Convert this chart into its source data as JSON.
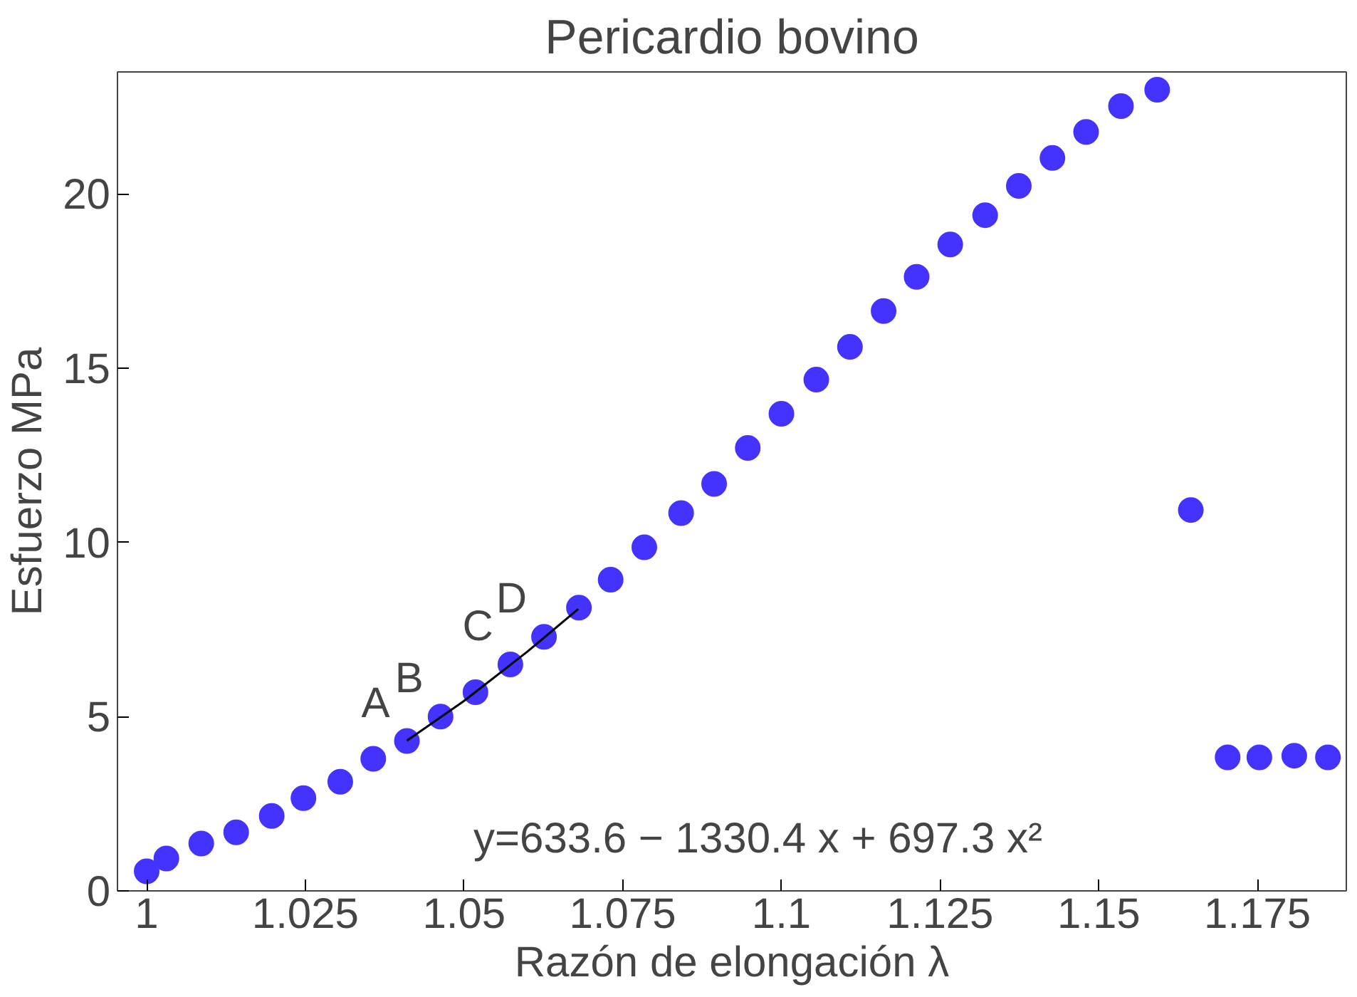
{
  "chart_data": {
    "type": "scatter",
    "title": "Pericardio bovino",
    "xlabel": "Razón de elongación λ",
    "ylabel": "Esfuerzo MPa",
    "xlim": [
      0.9954,
      1.189
    ],
    "ylim": [
      0,
      23.5
    ],
    "xticks": [
      1,
      1.025,
      1.05,
      1.075,
      1.1,
      1.125,
      1.15,
      1.175
    ],
    "yticks": [
      0,
      5,
      10,
      15,
      20
    ],
    "grid": false,
    "marker": "circle",
    "series": [
      {
        "color": "#4433ff",
        "x": [
          1.0,
          1.0031,
          1.0086,
          1.0141,
          1.0197,
          1.0247,
          1.0305,
          1.0357,
          1.041,
          1.0463,
          1.0518,
          1.0573,
          1.0626,
          1.0681,
          1.0731,
          1.0784,
          1.0842,
          1.0894,
          1.0947,
          1.1,
          1.1055,
          1.1108,
          1.1161,
          1.1213,
          1.1266,
          1.1321,
          1.1374,
          1.1427,
          1.148,
          1.1535,
          1.1592,
          1.1645,
          1.1703,
          1.1753,
          1.1808,
          1.1861
        ],
        "values": [
          0.56,
          0.93,
          1.36,
          1.68,
          2.15,
          2.66,
          3.13,
          3.79,
          4.3,
          5.0,
          5.7,
          6.5,
          7.29,
          8.13,
          8.93,
          9.86,
          10.84,
          11.68,
          12.71,
          13.69,
          14.67,
          15.61,
          16.64,
          17.62,
          18.55,
          19.39,
          20.23,
          21.03,
          21.78,
          22.52,
          22.99,
          10.93,
          3.83,
          3.83,
          3.88,
          3.83
        ]
      },
      {
        "type": "line",
        "color": "#000000",
        "line_style": "solid",
        "marker": "none",
        "x": [
          1.041,
          1.05,
          1.06,
          1.068
        ],
        "values": [
          4.31,
          5.45,
          6.87,
          8.09
        ]
      }
    ],
    "annotations": [
      {
        "text": "A",
        "x": 1.041,
        "y": 4.3
      },
      {
        "text": "B",
        "x": 1.0463,
        "y": 5.0
      },
      {
        "text": "C",
        "x": 1.0573,
        "y": 6.5
      },
      {
        "text": "D",
        "x": 1.0626,
        "y": 7.29
      },
      "y=633.6 − 1330.4 x + 697.3 x²"
    ]
  }
}
